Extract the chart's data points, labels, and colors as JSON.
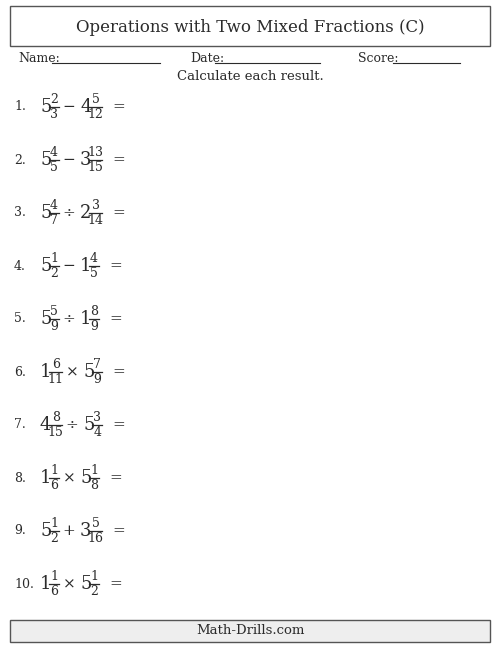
{
  "title": "Operations with Two Mixed Fractions (C)",
  "name_label": "Name:",
  "date_label": "Date:",
  "score_label": "Score:",
  "instruction": "Calculate each result.",
  "problems": [
    {
      "num": "1.",
      "w1": "5",
      "n1": "2",
      "d1": "3",
      "op": "−",
      "w2": "4",
      "n2": "5",
      "d2": "12"
    },
    {
      "num": "2.",
      "w1": "5",
      "n1": "4",
      "d1": "5",
      "op": "−",
      "w2": "3",
      "n2": "13",
      "d2": "15"
    },
    {
      "num": "3.",
      "w1": "5",
      "n1": "4",
      "d1": "7",
      "op": "÷",
      "w2": "2",
      "n2": "3",
      "d2": "14"
    },
    {
      "num": "4.",
      "w1": "5",
      "n1": "1",
      "d1": "2",
      "op": "−",
      "w2": "1",
      "n2": "4",
      "d2": "5"
    },
    {
      "num": "5.",
      "w1": "5",
      "n1": "5",
      "d1": "9",
      "op": "÷",
      "w2": "1",
      "n2": "8",
      "d2": "9"
    },
    {
      "num": "6.",
      "w1": "1",
      "n1": "6",
      "d1": "11",
      "op": "×",
      "w2": "5",
      "n2": "7",
      "d2": "9"
    },
    {
      "num": "7.",
      "w1": "4",
      "n1": "8",
      "d1": "15",
      "op": "÷",
      "w2": "5",
      "n2": "3",
      "d2": "4"
    },
    {
      "num": "8.",
      "w1": "1",
      "n1": "1",
      "d1": "6",
      "op": "×",
      "w2": "5",
      "n2": "1",
      "d2": "8"
    },
    {
      "num": "9.",
      "w1": "5",
      "n1": "1",
      "d1": "2",
      "op": "+",
      "w2": "3",
      "n2": "5",
      "d2": "16"
    },
    {
      "num": "10.",
      "w1": "1",
      "n1": "1",
      "d1": "6",
      "op": "×",
      "w2": "5",
      "n2": "1",
      "d2": "2"
    }
  ],
  "footer": "Math-Drills.com",
  "bg_color": "#ffffff",
  "text_color": "#2b2b2b",
  "border_color": "#555555",
  "fig_width": 5.0,
  "fig_height": 6.47,
  "dpi": 100
}
